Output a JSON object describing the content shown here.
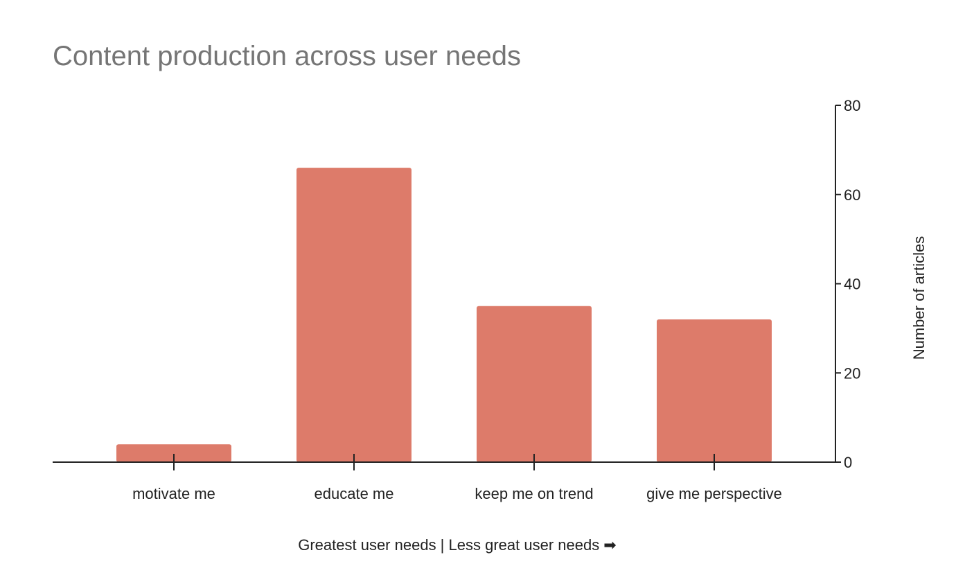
{
  "chart_data": {
    "type": "bar",
    "title": "Content production across user needs",
    "categories": [
      "motivate me",
      "educate me",
      "keep me on trend",
      "give me perspective"
    ],
    "values": [
      4,
      66,
      35,
      32
    ],
    "xlabel": "Greatest user needs | Less great user needs ➡",
    "ylabel": "Number of articles",
    "ylim": [
      0,
      80
    ],
    "yticks": [
      0,
      20,
      40,
      60,
      80
    ],
    "y_axis_side": "right",
    "grid": false,
    "legend": "none",
    "bar_color": "#dd7b6a"
  }
}
